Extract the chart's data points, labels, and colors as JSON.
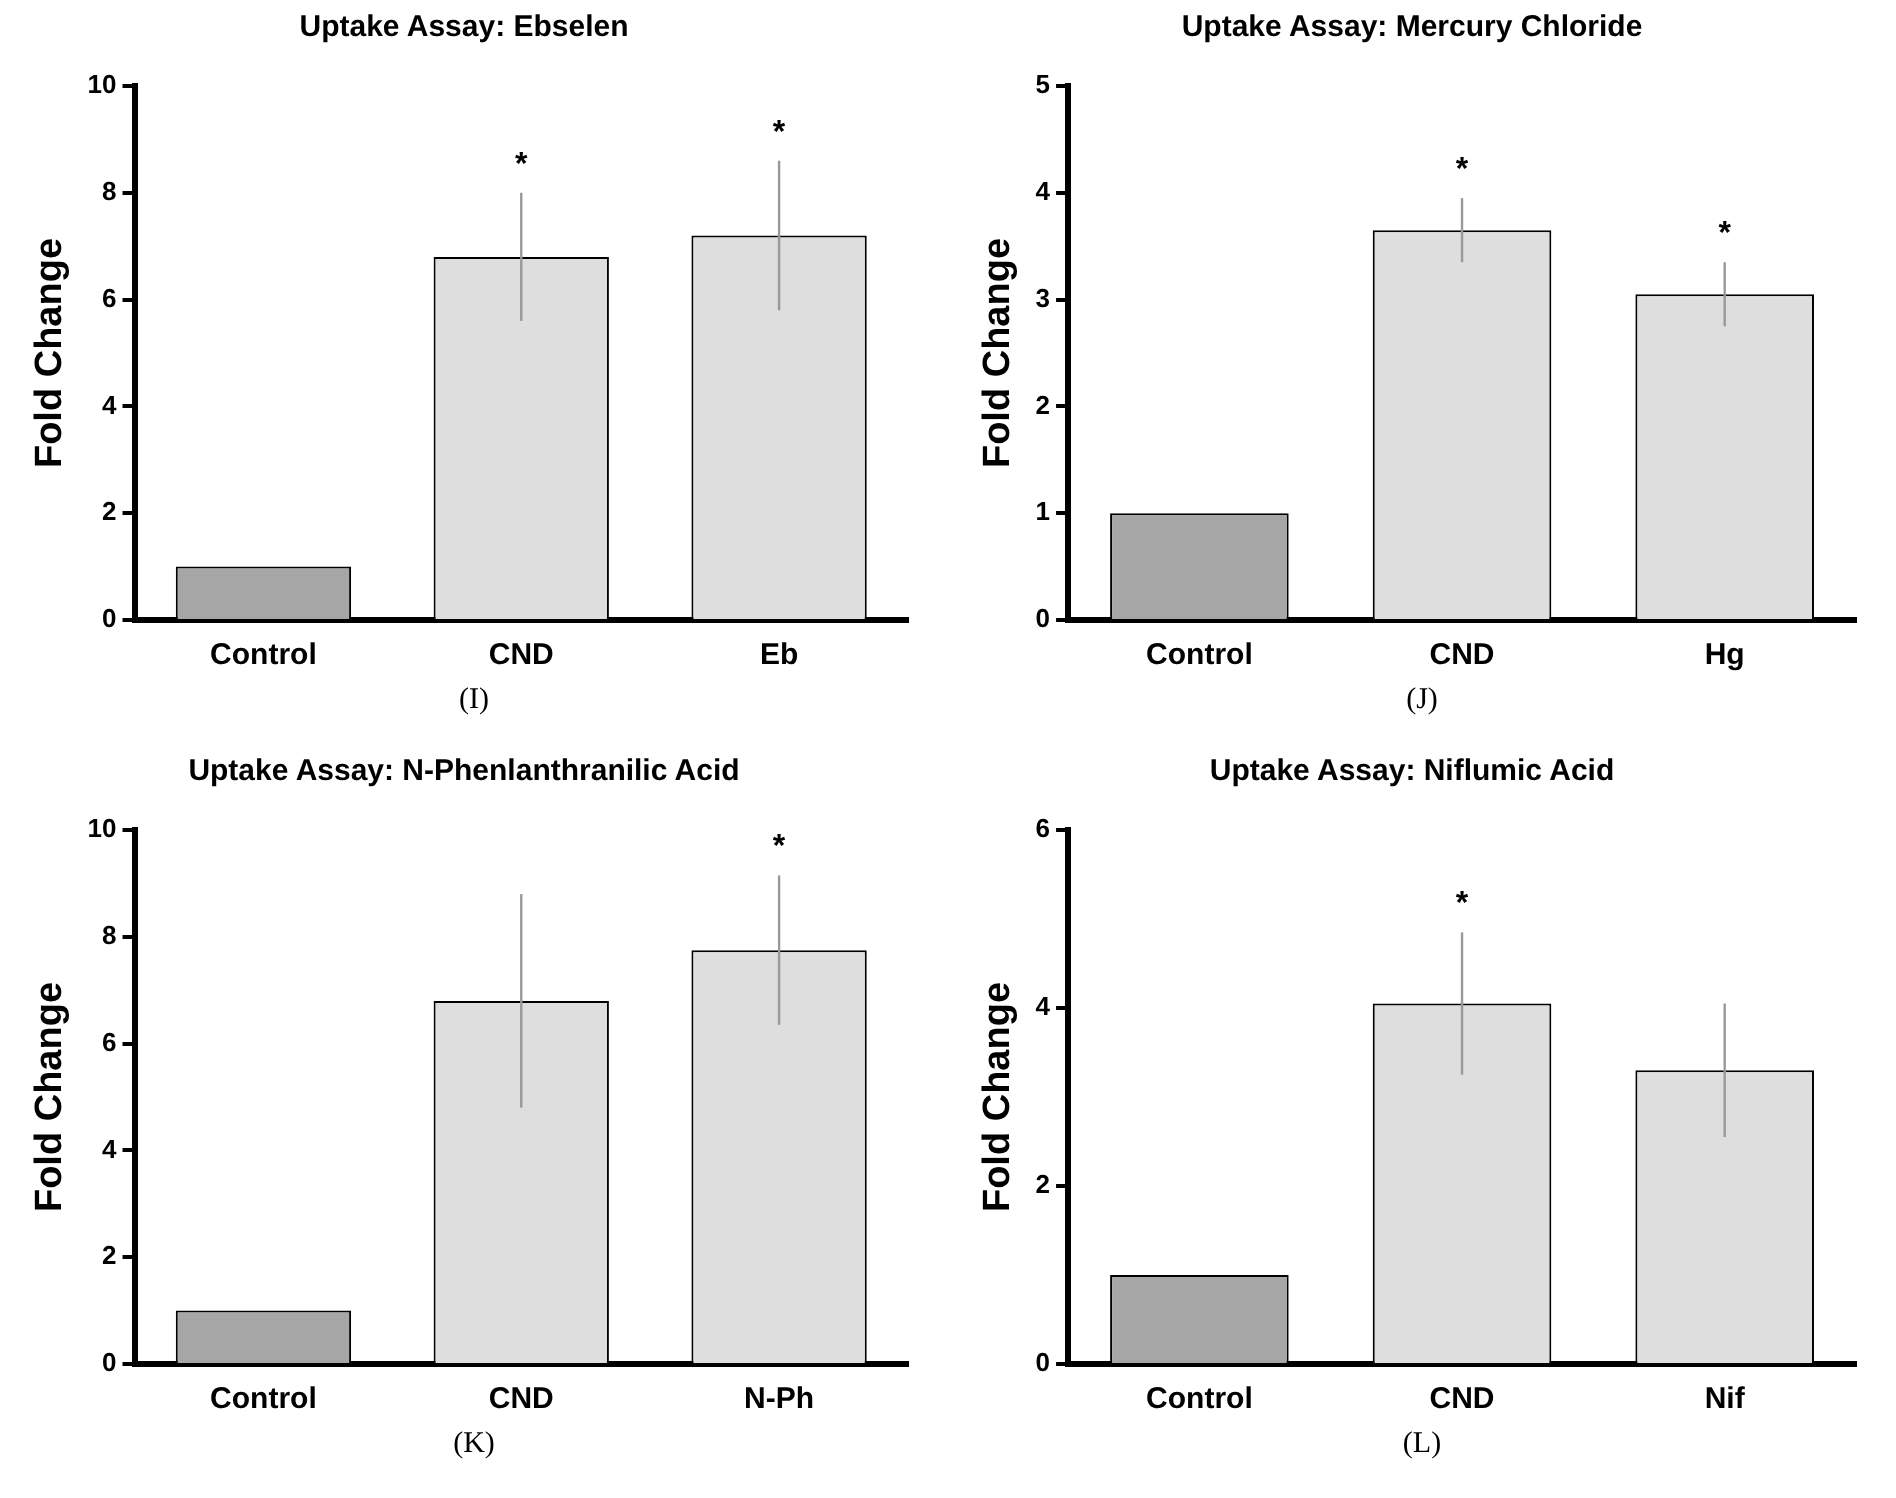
{
  "chart_data": [
    {
      "type": "bar",
      "title": "Uptake Assay: Ebselen",
      "ylabel": "Fold Change",
      "categories": [
        "Control",
        "CND",
        "Eb"
      ],
      "values": [
        1,
        6.8,
        7.2
      ],
      "errors": [
        null,
        1.2,
        1.4
      ],
      "value_labels": [
        null,
        "*",
        "*"
      ],
      "colors": [
        "#a6a6a6",
        "#dedede",
        "#dedede"
      ],
      "ylim": [
        0,
        10
      ],
      "yticks": [
        0,
        2,
        4,
        6,
        8,
        10
      ],
      "grid": false,
      "legend": false,
      "annotations": [
        "(I)"
      ]
    },
    {
      "type": "bar",
      "title": "Uptake Assay: Mercury Chloride",
      "ylabel": "Fold Change",
      "categories": [
        "Control",
        "CND",
        "Hg"
      ],
      "values": [
        1,
        3.65,
        3.05
      ],
      "errors": [
        null,
        0.3,
        0.3
      ],
      "value_labels": [
        null,
        "*",
        "*"
      ],
      "colors": [
        "#a6a6a6",
        "#dedede",
        "#dedede"
      ],
      "ylim": [
        0,
        5
      ],
      "yticks": [
        0,
        1,
        2,
        3,
        4,
        5
      ],
      "grid": false,
      "legend": false,
      "annotations": [
        "(J)"
      ]
    },
    {
      "type": "bar",
      "title": "Uptake Assay: N-Phenlanthranilic Acid",
      "ylabel": "Fold Change",
      "categories": [
        "Control",
        "CND",
        "N-Ph"
      ],
      "values": [
        1,
        6.8,
        7.75
      ],
      "errors": [
        null,
        2.0,
        1.4
      ],
      "value_labels": [
        null,
        null,
        "*"
      ],
      "colors": [
        "#a6a6a6",
        "#dedede",
        "#dedede"
      ],
      "ylim": [
        0,
        10
      ],
      "yticks": [
        0,
        2,
        4,
        6,
        8,
        10
      ],
      "grid": false,
      "legend": false,
      "annotations": [
        "(K)"
      ]
    },
    {
      "type": "bar",
      "title": "Uptake Assay: Niflumic Acid",
      "ylabel": "Fold Change",
      "categories": [
        "Control",
        "CND",
        "Nif"
      ],
      "values": [
        1,
        4.05,
        3.3
      ],
      "errors": [
        null,
        0.8,
        0.75
      ],
      "value_labels": [
        null,
        "*",
        null
      ],
      "colors": [
        "#a6a6a6",
        "#dedede",
        "#dedede"
      ],
      "ylim": [
        0,
        6
      ],
      "yticks": [
        0,
        2,
        4,
        6
      ],
      "grid": false,
      "legend": false,
      "annotations": [
        "(L)"
      ]
    }
  ]
}
